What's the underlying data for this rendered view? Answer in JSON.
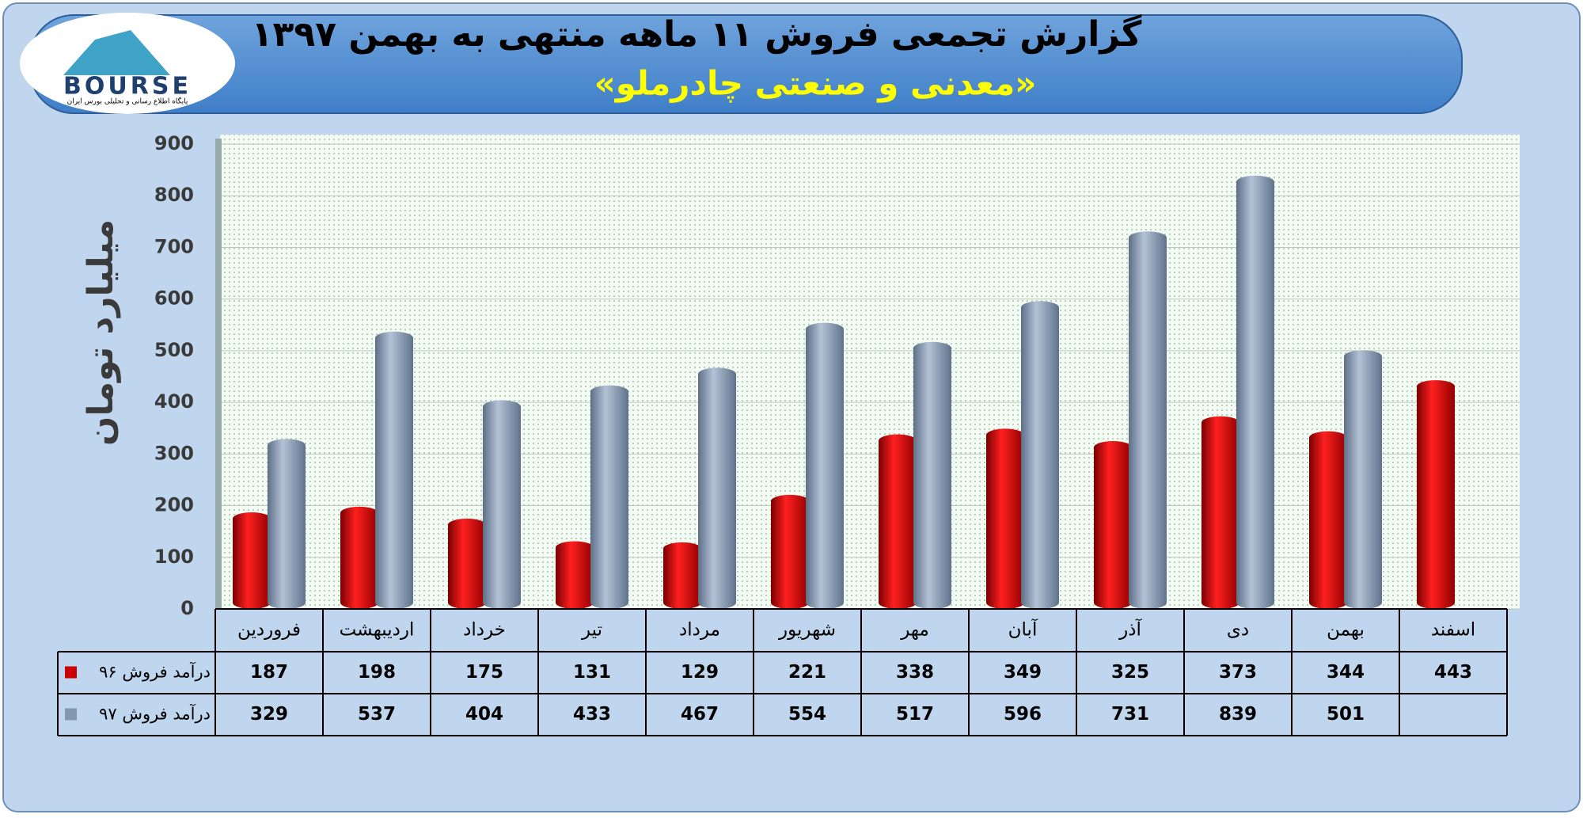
{
  "logo": {
    "text": "BOURSE",
    "tagline": "پایگاه اطلاع رسانی و تحلیلی بورس ایران"
  },
  "chart_data": {
    "type": "bar",
    "title": "گزارش تجمعی فروش ۱۱ ماهه منتهی به بهمن ۱۳۹۷",
    "subtitle": "«معدنی و صنعتی چادرملو»",
    "y_label": "میلیارد تومان",
    "categories": [
      "فروردین",
      "اردیبهشت",
      "خرداد",
      "تیر",
      "مرداد",
      "شهریور",
      "مهر",
      "آبان",
      "آذر",
      "دی",
      "بهمن",
      "اسفند"
    ],
    "series": [
      {
        "name": "درآمد فروش ۹۶",
        "color": "#cc0000",
        "values": [
          187,
          198,
          175,
          131,
          129,
          221,
          338,
          349,
          325,
          373,
          344,
          443
        ]
      },
      {
        "name": "درآمد فروش ۹۷",
        "color": "#8497b0",
        "values": [
          329,
          537,
          404,
          433,
          467,
          554,
          517,
          596,
          731,
          839,
          501,
          null
        ]
      }
    ],
    "ylim": [
      0,
      900
    ],
    "yticks": [
      0,
      100,
      200,
      300,
      400,
      500,
      600,
      700,
      800,
      900
    ],
    "grid": true
  }
}
